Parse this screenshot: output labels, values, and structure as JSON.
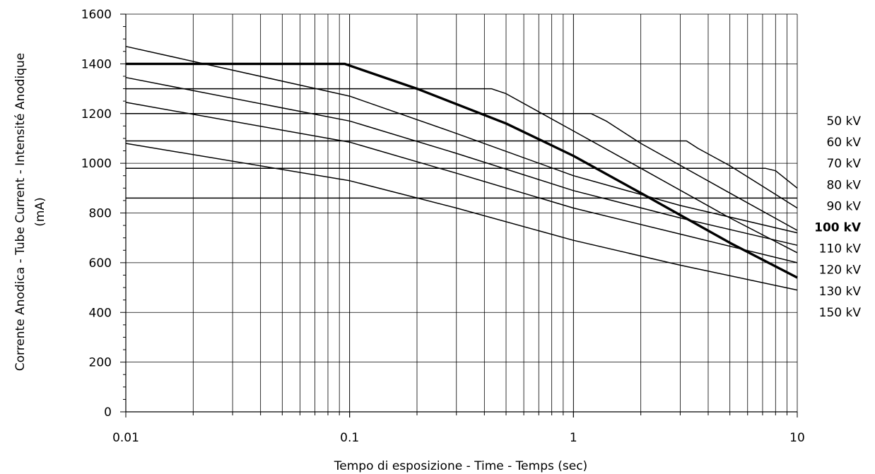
{
  "chart_data": {
    "type": "line",
    "title": "",
    "xlabel": "Tempo di esposizione - Time - Temps  (sec)",
    "ylabel_line1": "Corrente Anodica - Tube Current - Intensité Anodique",
    "ylabel_line2": "(mA)",
    "x_scale": "log",
    "xlim": [
      0.01,
      10
    ],
    "ylim": [
      0,
      1600
    ],
    "x_ticks": [
      {
        "value": 0.01,
        "label": "0.01"
      },
      {
        "value": 0.1,
        "label": "0.1"
      },
      {
        "value": 1,
        "label": "1"
      },
      {
        "value": 10,
        "label": "10"
      }
    ],
    "y_ticks": [
      {
        "value": 0,
        "label": "0"
      },
      {
        "value": 200,
        "label": "200"
      },
      {
        "value": 400,
        "label": "400"
      },
      {
        "value": 600,
        "label": "600"
      },
      {
        "value": 800,
        "label": "800"
      },
      {
        "value": 1000,
        "label": "1000"
      },
      {
        "value": 1200,
        "label": "1200"
      },
      {
        "value": 1400,
        "label": "1400"
      },
      {
        "value": 1600,
        "label": "1600"
      }
    ],
    "grid": true,
    "legend": "right",
    "line_color": "#000000",
    "series": [
      {
        "name": "50 kV",
        "bold": false,
        "points": [
          [
            0.01,
            1470
          ],
          [
            0.1,
            1270
          ],
          [
            0.3,
            1120
          ],
          [
            1,
            950
          ],
          [
            3,
            830
          ],
          [
            10,
            720
          ]
        ]
      },
      {
        "name": "60 kV",
        "bold": false,
        "points": [
          [
            0.01,
            1345
          ],
          [
            0.1,
            1170
          ],
          [
            0.3,
            1040
          ],
          [
            1,
            890
          ],
          [
            3,
            780
          ],
          [
            10,
            670
          ]
        ]
      },
      {
        "name": "70 kV",
        "bold": false,
        "points": [
          [
            0.01,
            1245
          ],
          [
            0.1,
            1085
          ],
          [
            0.3,
            960
          ],
          [
            1,
            820
          ],
          [
            3,
            715
          ],
          [
            10,
            600
          ]
        ]
      },
      {
        "name": "80 kV",
        "bold": false,
        "points": [
          [
            0.01,
            1080
          ],
          [
            0.1,
            930
          ],
          [
            0.3,
            820
          ],
          [
            1,
            690
          ],
          [
            3,
            590
          ],
          [
            10,
            490
          ]
        ]
      },
      {
        "name": "90 kV",
        "bold": false,
        "points": [
          [
            0.01,
            980
          ],
          [
            7.2,
            980
          ],
          [
            8,
            970
          ],
          [
            10,
            900
          ]
        ]
      },
      {
        "name": "100 kV",
        "bold": true,
        "points": [
          [
            0.01,
            1400
          ],
          [
            0.095,
            1400
          ],
          [
            0.2,
            1300
          ],
          [
            0.5,
            1160
          ],
          [
            1,
            1030
          ],
          [
            2,
            880
          ],
          [
            5,
            680
          ],
          [
            10,
            540
          ]
        ]
      },
      {
        "name": "110 kV",
        "bold": false,
        "points": [
          [
            0.01,
            1300
          ],
          [
            0.43,
            1300
          ],
          [
            0.5,
            1280
          ],
          [
            1,
            1130
          ],
          [
            2,
            980
          ],
          [
            5,
            780
          ],
          [
            10,
            640
          ]
        ]
      },
      {
        "name": "120 kV",
        "bold": false,
        "points": [
          [
            0.01,
            1200
          ],
          [
            1.2,
            1200
          ],
          [
            1.4,
            1170
          ],
          [
            2,
            1080
          ],
          [
            5,
            880
          ],
          [
            10,
            730
          ]
        ]
      },
      {
        "name": "130 kV",
        "bold": false,
        "points": [
          [
            0.01,
            1090
          ],
          [
            3.2,
            1090
          ],
          [
            3.6,
            1060
          ],
          [
            5,
            990
          ],
          [
            10,
            820
          ]
        ]
      },
      {
        "name": "150 kV",
        "bold": false,
        "points": [
          [
            0.01,
            860
          ],
          [
            10,
            860
          ]
        ]
      }
    ],
    "legend_entries": [
      "50 kV",
      "60 kV",
      "70 kV",
      "80 kV",
      "90 kV",
      "100 kV",
      "110 kV",
      "120 kV",
      "130 kV",
      "150 kV"
    ],
    "legend_bold_index": 5
  }
}
